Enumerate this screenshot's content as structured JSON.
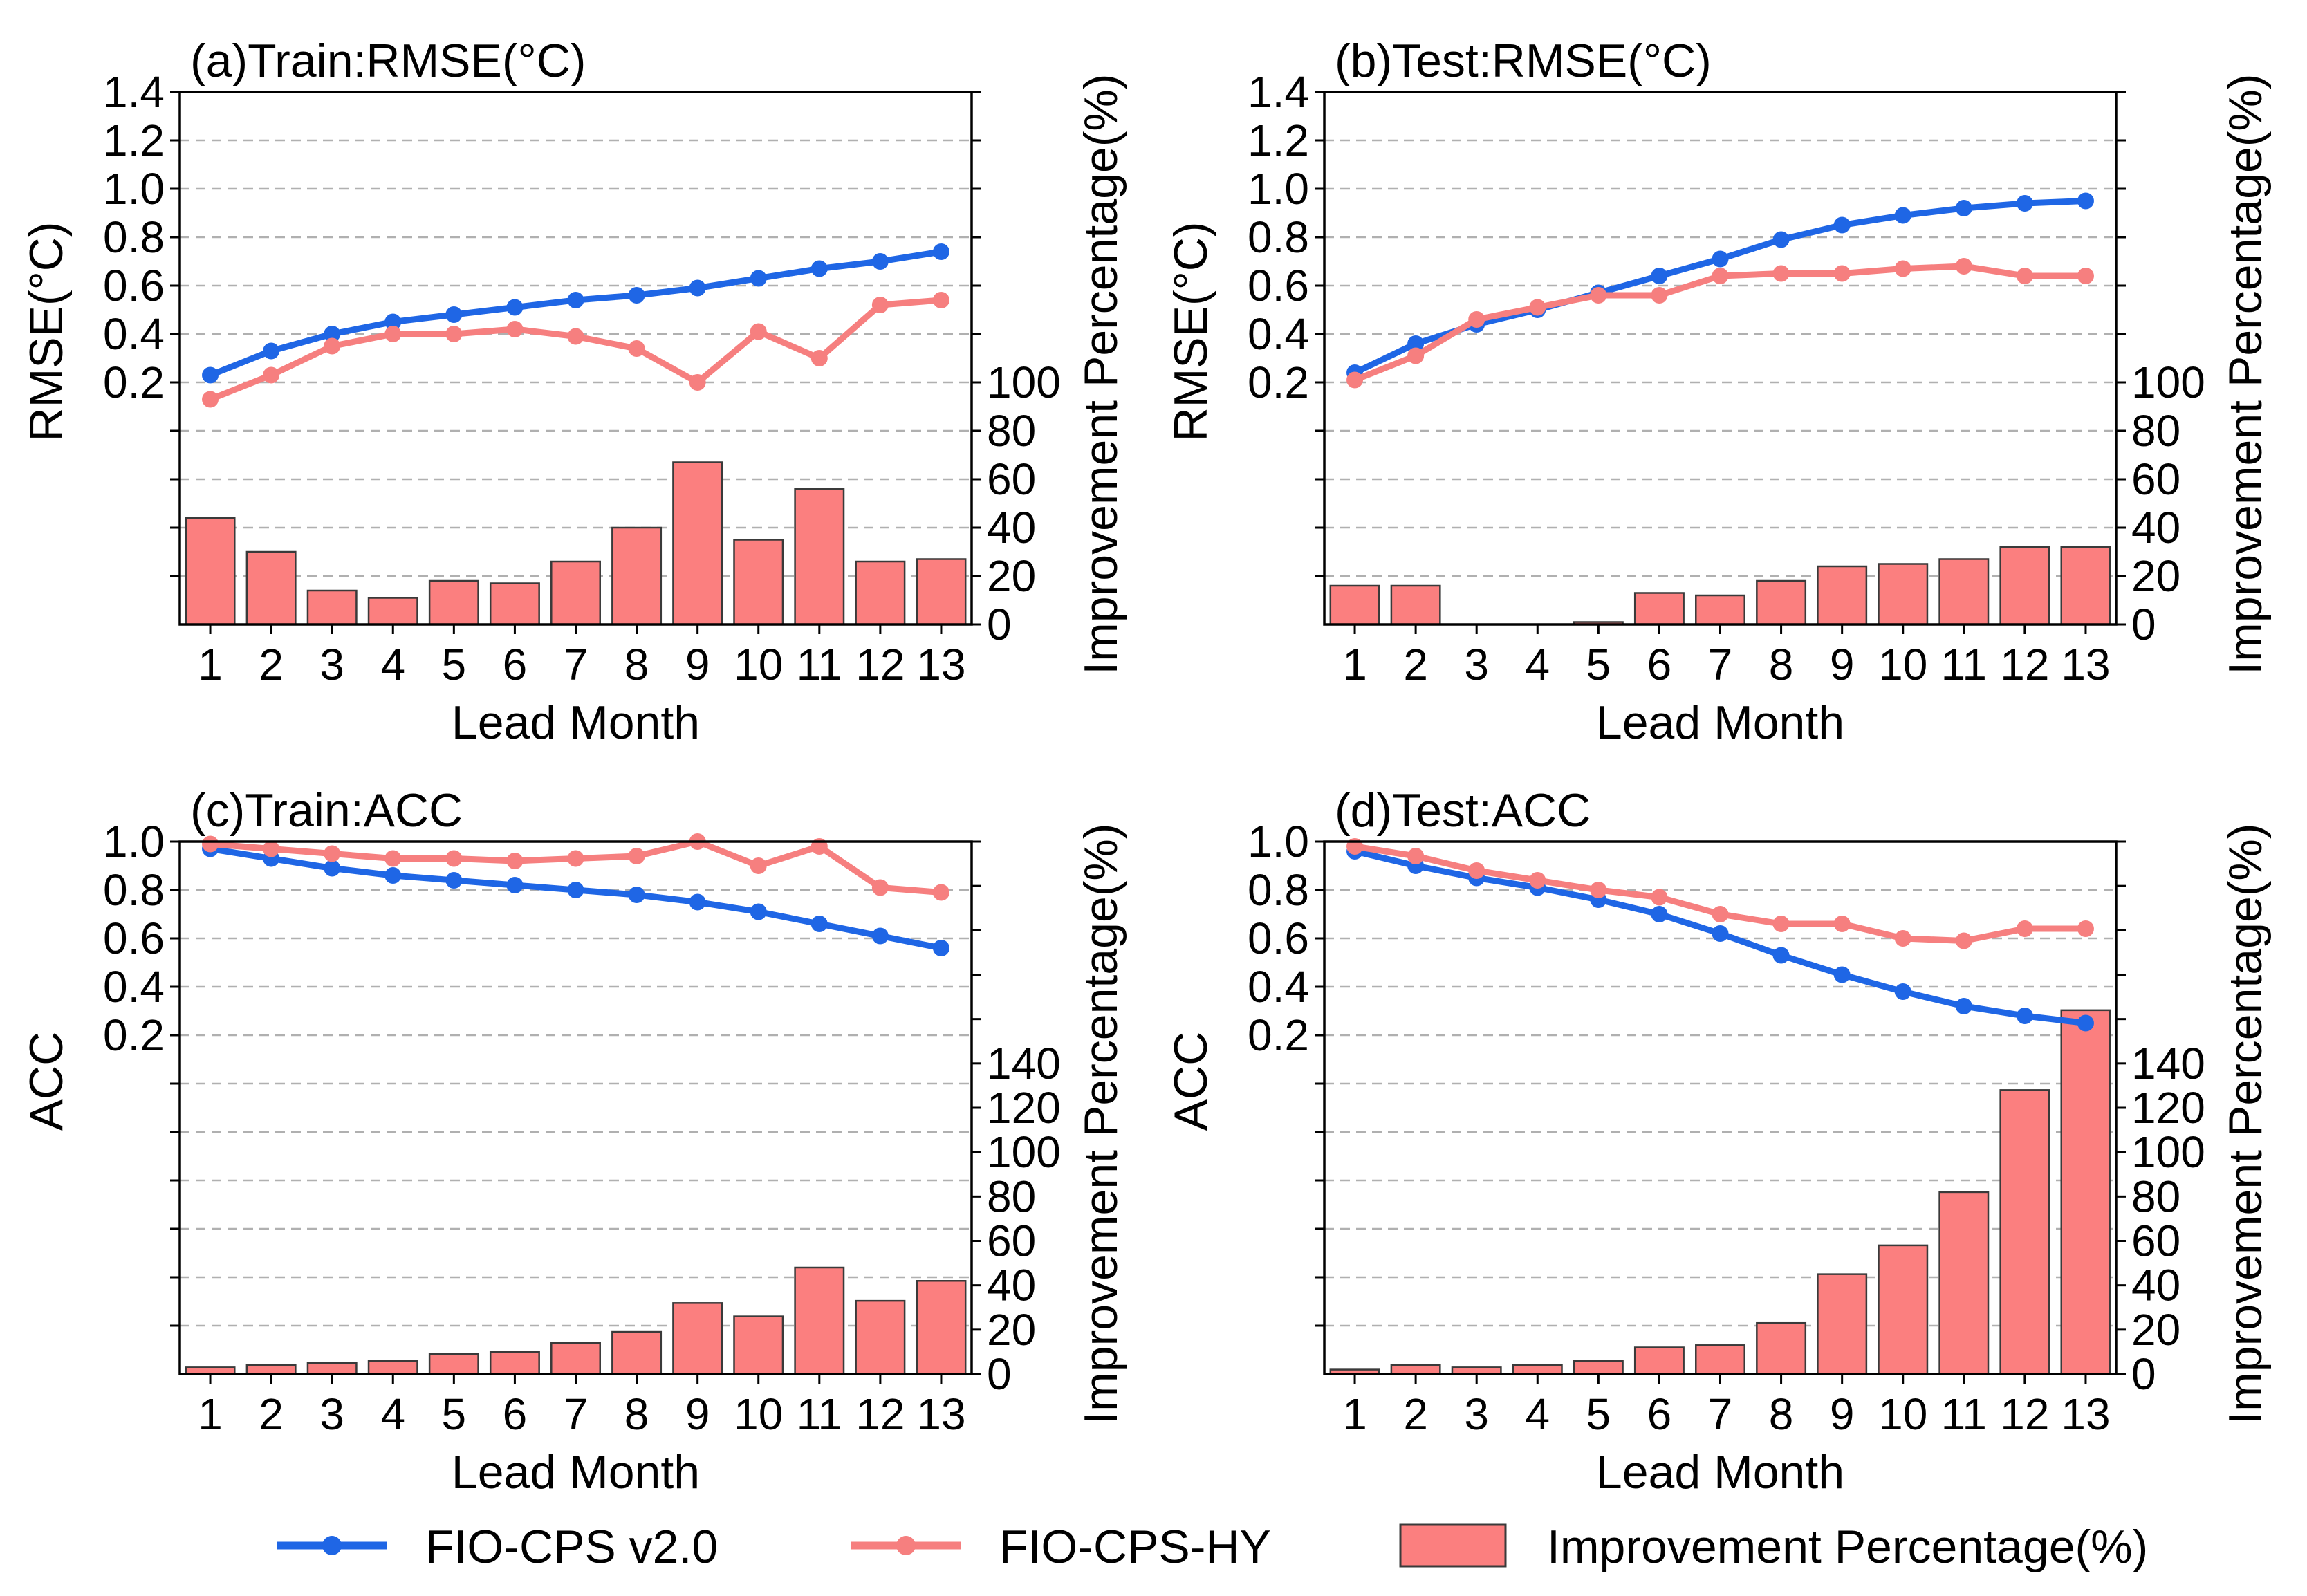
{
  "colors": {
    "fio_cps": "#1f66e5",
    "fio_cps_hy": "#f67f7f",
    "bar_fill": "#fb7f7f",
    "bar_edge": "#3a3a3a",
    "grid": "#b0b0b0"
  },
  "legend": {
    "fio_cps": "FIO-CPS v2.0",
    "fio_cps_hy": "FIO-CPS-HY",
    "improvement": "Improvement Percentage(%)"
  },
  "chart_data": [
    {
      "id": "a",
      "type": "bar+line",
      "title": "(a)Train:RMSE(°C)",
      "xlabel": "Lead Month",
      "ylabel_left": "RMSE(°C)",
      "ylabel_right": "Improvement Percentage(%)",
      "categories": [
        "1",
        "2",
        "3",
        "4",
        "5",
        "6",
        "7",
        "8",
        "9",
        "10",
        "11",
        "12",
        "13"
      ],
      "left_axis": {
        "range": [
          -0.8,
          1.4
        ],
        "ticks": [
          0.2,
          0.4,
          0.6,
          0.8,
          1.0,
          1.2,
          1.4
        ],
        "tick_labels": [
          "0.2",
          "0.4",
          "0.6",
          "0.8",
          "1.0",
          "1.2",
          "1.4"
        ],
        "grid": [
          -0.8,
          -0.6,
          -0.4,
          -0.2,
          0.0,
          0.2,
          0.4,
          0.6,
          0.8,
          1.0,
          1.2,
          1.4
        ]
      },
      "right_axis": {
        "range": [
          0,
          220
        ],
        "ticks": [
          0,
          20,
          40,
          60,
          80,
          100
        ],
        "tick_labels": [
          "0",
          "20",
          "40",
          "60",
          "80",
          "100"
        ]
      },
      "series": [
        {
          "name": "FIO-CPS v2.0",
          "key": "fio_cps",
          "values": [
            0.23,
            0.33,
            0.4,
            0.45,
            0.48,
            0.51,
            0.54,
            0.56,
            0.59,
            0.63,
            0.67,
            0.7,
            0.74
          ]
        },
        {
          "name": "FIO-CPS-HY",
          "key": "fio_cps_hy",
          "values": [
            0.13,
            0.23,
            0.35,
            0.4,
            0.4,
            0.42,
            0.39,
            0.34,
            0.2,
            0.41,
            0.3,
            0.52,
            0.54
          ]
        }
      ],
      "bars": {
        "name": "Improvement Percentage(%)",
        "values": [
          44,
          30,
          14,
          11,
          18,
          17,
          26,
          40,
          67,
          35,
          56,
          26,
          27
        ]
      }
    },
    {
      "id": "b",
      "type": "bar+line",
      "title": "(b)Test:RMSE(°C)",
      "xlabel": "Lead Month",
      "ylabel_left": "RMSE(°C)",
      "ylabel_right": "Improvement Percentage(%)",
      "categories": [
        "1",
        "2",
        "3",
        "4",
        "5",
        "6",
        "7",
        "8",
        "9",
        "10",
        "11",
        "12",
        "13"
      ],
      "left_axis": {
        "range": [
          -0.8,
          1.4
        ],
        "ticks": [
          0.2,
          0.4,
          0.6,
          0.8,
          1.0,
          1.2,
          1.4
        ],
        "tick_labels": [
          "0.2",
          "0.4",
          "0.6",
          "0.8",
          "1.0",
          "1.2",
          "1.4"
        ],
        "grid": [
          -0.8,
          -0.6,
          -0.4,
          -0.2,
          0.0,
          0.2,
          0.4,
          0.6,
          0.8,
          1.0,
          1.2,
          1.4
        ]
      },
      "right_axis": {
        "range": [
          0,
          220
        ],
        "ticks": [
          0,
          20,
          40,
          60,
          80,
          100
        ],
        "tick_labels": [
          "0",
          "20",
          "40",
          "60",
          "80",
          "100"
        ]
      },
      "series": [
        {
          "name": "FIO-CPS v2.0",
          "key": "fio_cps",
          "values": [
            0.24,
            0.36,
            0.44,
            0.5,
            0.57,
            0.64,
            0.71,
            0.79,
            0.85,
            0.89,
            0.92,
            0.94,
            0.95
          ]
        },
        {
          "name": "FIO-CPS-HY",
          "key": "fio_cps_hy",
          "values": [
            0.21,
            0.31,
            0.46,
            0.51,
            0.56,
            0.56,
            0.64,
            0.65,
            0.65,
            0.67,
            0.68,
            0.64,
            0.64
          ]
        }
      ],
      "bars": {
        "name": "Improvement Percentage(%)",
        "values": [
          16,
          16,
          0,
          0,
          1,
          13,
          12,
          18,
          24,
          25,
          27,
          32,
          32
        ]
      }
    },
    {
      "id": "c",
      "type": "bar+line",
      "title": "(c)Train:ACC",
      "xlabel": "Lead Month",
      "ylabel_left": "ACC",
      "ylabel_right": "Improvement Percentage(%)",
      "categories": [
        "1",
        "2",
        "3",
        "4",
        "5",
        "6",
        "7",
        "8",
        "9",
        "10",
        "11",
        "12",
        "13"
      ],
      "left_axis": {
        "range": [
          -1.2,
          1.0
        ],
        "ticks": [
          0.2,
          0.4,
          0.6,
          0.8,
          1.0
        ],
        "tick_labels": [
          "0.2",
          "0.4",
          "0.6",
          "0.8",
          "1.0"
        ],
        "grid": [
          -1.2,
          -1.0,
          -0.8,
          -0.6,
          -0.4,
          -0.2,
          0.0,
          0.2,
          0.4,
          0.6,
          0.8,
          1.0
        ]
      },
      "right_axis": {
        "range": [
          0,
          240
        ],
        "ticks": [
          0,
          20,
          40,
          60,
          80,
          100,
          120,
          140
        ],
        "tick_labels": [
          "0",
          "20",
          "40",
          "60",
          "80",
          "100",
          "120",
          "140"
        ]
      },
      "series": [
        {
          "name": "FIO-CPS v2.0",
          "key": "fio_cps",
          "values": [
            0.97,
            0.93,
            0.89,
            0.86,
            0.84,
            0.82,
            0.8,
            0.78,
            0.75,
            0.71,
            0.66,
            0.61,
            0.56
          ]
        },
        {
          "name": "FIO-CPS-HY",
          "key": "fio_cps_hy",
          "values": [
            0.99,
            0.97,
            0.95,
            0.93,
            0.93,
            0.92,
            0.93,
            0.94,
            1.0,
            0.9,
            0.98,
            0.81,
            0.79
          ]
        }
      ],
      "bars": {
        "name": "Improvement Percentage(%)",
        "values": [
          3,
          4,
          5,
          6,
          9,
          10,
          14,
          19,
          32,
          26,
          48,
          33,
          42
        ]
      }
    },
    {
      "id": "d",
      "type": "bar+line",
      "title": "(d)Test:ACC",
      "xlabel": "Lead Month",
      "ylabel_left": "ACC",
      "ylabel_right": "Improvement Percentage(%)",
      "categories": [
        "1",
        "2",
        "3",
        "4",
        "5",
        "6",
        "7",
        "8",
        "9",
        "10",
        "11",
        "12",
        "13"
      ],
      "left_axis": {
        "range": [
          -1.2,
          1.0
        ],
        "ticks": [
          0.2,
          0.4,
          0.6,
          0.8,
          1.0
        ],
        "tick_labels": [
          "0.2",
          "0.4",
          "0.6",
          "0.8",
          "1.0"
        ],
        "grid": [
          -1.2,
          -1.0,
          -0.8,
          -0.6,
          -0.4,
          -0.2,
          0.0,
          0.2,
          0.4,
          0.6,
          0.8,
          1.0
        ]
      },
      "right_axis": {
        "range": [
          0,
          240
        ],
        "ticks": [
          0,
          20,
          40,
          60,
          80,
          100,
          120,
          140
        ],
        "tick_labels": [
          "0",
          "20",
          "40",
          "60",
          "80",
          "100",
          "120",
          "140"
        ]
      },
      "series": [
        {
          "name": "FIO-CPS v2.0",
          "key": "fio_cps",
          "values": [
            0.96,
            0.9,
            0.85,
            0.81,
            0.76,
            0.7,
            0.62,
            0.53,
            0.45,
            0.38,
            0.32,
            0.28,
            0.25
          ]
        },
        {
          "name": "FIO-CPS-HY",
          "key": "fio_cps_hy",
          "values": [
            0.98,
            0.94,
            0.88,
            0.84,
            0.8,
            0.77,
            0.7,
            0.66,
            0.66,
            0.6,
            0.59,
            0.64,
            0.64
          ]
        }
      ],
      "bars": {
        "name": "Improvement Percentage(%)",
        "values": [
          2,
          4,
          3,
          4,
          6,
          12,
          13,
          23,
          45,
          58,
          82,
          128,
          164
        ]
      }
    }
  ]
}
